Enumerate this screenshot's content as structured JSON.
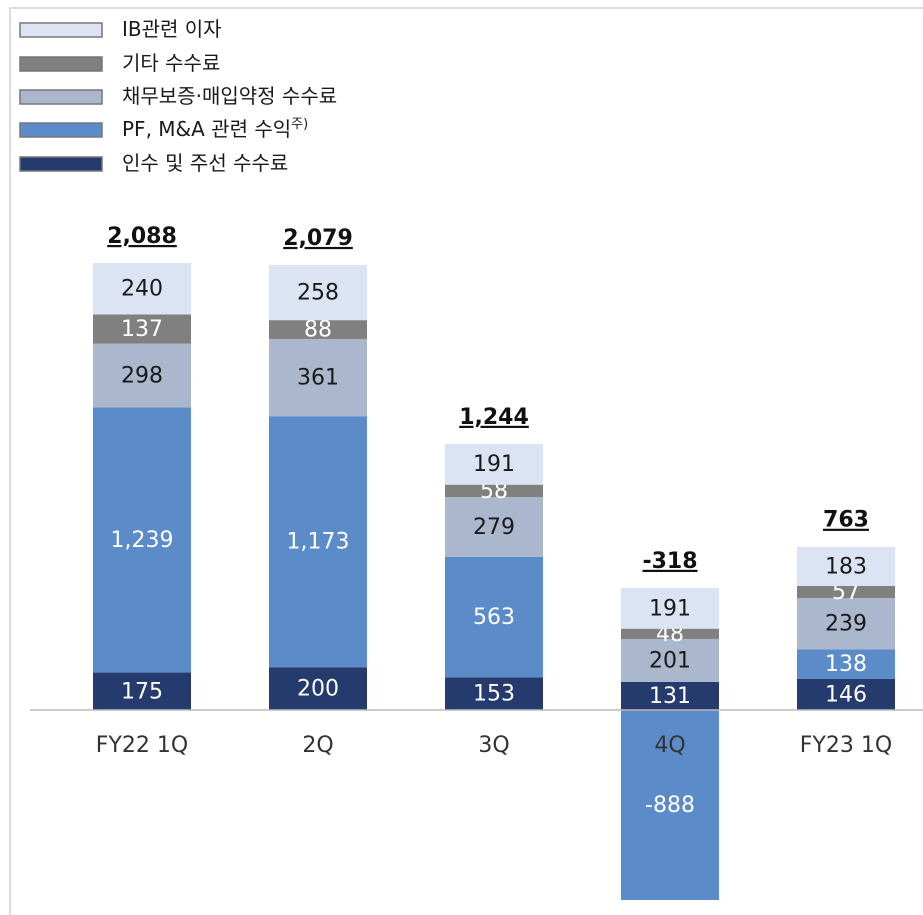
{
  "chart_data": {
    "type": "stacked_bar",
    "categories": [
      "FY22 1Q",
      "2Q",
      "3Q",
      "4Q",
      "FY23 1Q"
    ],
    "series": [
      {
        "name": "인수 및 주선 수수료",
        "color": "#253b6e",
        "label_color": "#ffffff",
        "values": [
          175,
          200,
          153,
          131,
          146
        ]
      },
      {
        "name": "PF, M&A 관련 수익",
        "note": "주)",
        "color": "#5b8bc9",
        "label_color": "#ffffff",
        "values": [
          1239,
          1173,
          563,
          -888,
          138
        ],
        "value_labels": [
          "1,239",
          "1,173",
          "563",
          "-888",
          "138"
        ]
      },
      {
        "name": "채무보증·매입약정 수수료",
        "color": "#aab7cc",
        "label_color": "#1a1a1a",
        "values": [
          298,
          361,
          279,
          201,
          239
        ]
      },
      {
        "name": "기타 수수료",
        "color": "#808080",
        "label_color": "#ffffff",
        "values": [
          137,
          88,
          58,
          48,
          57
        ]
      },
      {
        "name": "IB관련 이자",
        "color": "#dce4f3",
        "label_color": "#1a1a1a",
        "values": [
          240,
          258,
          191,
          191,
          183
        ]
      }
    ],
    "totals": [
      2088,
      2079,
      1244,
      -318,
      763
    ],
    "total_labels": [
      "2,088",
      "2,079",
      "1,244",
      "-318",
      "763"
    ]
  }
}
